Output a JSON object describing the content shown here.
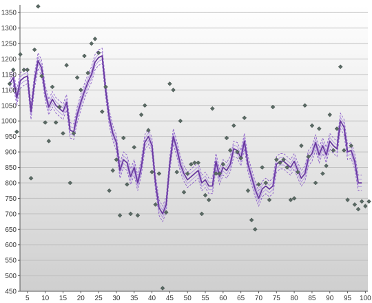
{
  "chart_data": {
    "type": "line",
    "title": "",
    "xlabel": "",
    "ylabel": "",
    "xlim": [
      0,
      100
    ],
    "ylim": [
      450,
      1375
    ],
    "grid": true,
    "legend": "none",
    "x_ticks": [
      5,
      10,
      15,
      20,
      25,
      30,
      35,
      40,
      45,
      50,
      55,
      60,
      65,
      70,
      75,
      80,
      85,
      90,
      95,
      100
    ],
    "y_ticks": [
      450,
      500,
      550,
      600,
      650,
      700,
      750,
      800,
      850,
      900,
      950,
      1000,
      1050,
      1100,
      1150,
      1200,
      1250,
      1300,
      1350
    ],
    "x_tick_labels": [
      "5",
      "10",
      "15",
      "20",
      "25",
      "30",
      "35",
      "40",
      "45",
      "50",
      "55",
      "60",
      "65",
      "70",
      "75",
      "80",
      "85",
      "90",
      "95",
      "100"
    ],
    "y_tick_labels": [
      "450",
      "500",
      "550",
      "600",
      "650",
      "700",
      "750",
      "800",
      "850",
      "900",
      "950",
      "1000",
      "1050",
      "1100",
      "1150",
      "1200",
      "1250",
      "1300",
      "1350"
    ],
    "colors": {
      "fit_line": "#6a3aa0",
      "band_lines": "#8a5cc8",
      "points": "#5a6a64",
      "grid": "#c0c0c0",
      "background_top": "#ffffff",
      "background_bottom": "#cfcfcf"
    },
    "fit": {
      "x": [
        0,
        1,
        2,
        3,
        4,
        5,
        6,
        7,
        8,
        9,
        10,
        11,
        12,
        13,
        14,
        15,
        16,
        17,
        18,
        19,
        20,
        21,
        22,
        23,
        24,
        25,
        26,
        27,
        28,
        29,
        30,
        31,
        32,
        33,
        34,
        35,
        36,
        37,
        38,
        39,
        40,
        41,
        42,
        43,
        44,
        45,
        46,
        47,
        48,
        49,
        50,
        51,
        52,
        53,
        54,
        55,
        56,
        57,
        58,
        59,
        60,
        61,
        62,
        63,
        64,
        65,
        66,
        67,
        68,
        69,
        70,
        71,
        72,
        73,
        74,
        75,
        76,
        77,
        78,
        79,
        80,
        81,
        82,
        83,
        84,
        85,
        86,
        87,
        88,
        89,
        90,
        91,
        92,
        93,
        94,
        95,
        96,
        97,
        98,
        99
      ],
      "y": [
        1120,
        1140,
        1075,
        1130,
        1140,
        1145,
        1030,
        1130,
        1195,
        1170,
        1090,
        1045,
        1070,
        1050,
        1040,
        1030,
        1060,
        970,
        965,
        1020,
        1060,
        1095,
        1125,
        1150,
        1190,
        1205,
        1210,
        1100,
        1010,
        960,
        930,
        840,
        875,
        865,
        820,
        850,
        800,
        850,
        930,
        950,
        920,
        800,
        720,
        700,
        730,
        860,
        950,
        910,
        860,
        830,
        810,
        820,
        830,
        840,
        800,
        810,
        790,
        790,
        870,
        820,
        850,
        840,
        860,
        910,
        905,
        880,
        935,
        860,
        820,
        780,
        750,
        780,
        790,
        780,
        790,
        860,
        870,
        870,
        860,
        850,
        870,
        840,
        815,
        830,
        880,
        895,
        930,
        890,
        920,
        890,
        935,
        920,
        910,
        1000,
        980,
        900,
        905,
        870,
        800,
        800
      ]
    },
    "scatter": {
      "x": [
        0,
        1,
        2,
        3,
        4,
        5,
        6,
        7,
        8,
        9,
        10,
        11,
        12,
        13,
        14,
        15,
        16,
        17,
        18,
        19,
        20,
        21,
        22,
        23,
        24,
        25,
        26,
        27,
        28,
        29,
        30,
        31,
        32,
        33,
        34,
        35,
        36,
        37,
        38,
        39,
        40,
        41,
        42,
        43,
        44,
        45,
        46,
        47,
        48,
        49,
        50,
        51,
        52,
        53,
        54,
        55,
        56,
        57,
        58,
        59,
        60,
        61,
        62,
        63,
        64,
        65,
        66,
        67,
        68,
        69,
        70,
        71,
        72,
        73,
        74,
        75,
        76,
        77,
        78,
        79,
        80,
        81,
        82,
        83,
        84,
        85,
        86,
        87,
        88,
        89,
        90,
        91,
        92,
        93,
        94,
        95,
        96,
        97,
        98,
        99,
        100,
        101
      ],
      "y": [
        1120,
        1165,
        965,
        1215,
        1165,
        1165,
        815,
        1230,
        1370,
        1145,
        995,
        935,
        1110,
        995,
        1045,
        960,
        1180,
        800,
        960,
        1140,
        1100,
        1210,
        1155,
        1250,
        1265,
        1220,
        1030,
        1110,
        775,
        840,
        875,
        695,
        945,
        795,
        700,
        915,
        695,
        1020,
        1050,
        970,
        835,
        730,
        830,
        460,
        705,
        1120,
        1100,
        835,
        1000,
        770,
        830,
        860,
        865,
        865,
        700,
        760,
        745,
        1040,
        830,
        830,
        860,
        945,
        905,
        985,
        900,
        880,
        1010,
        775,
        680,
        650,
        795,
        850,
        800,
        745,
        1045,
        875,
        865,
        875,
        850,
        745,
        750,
        835,
        920,
        1050,
        885,
        985,
        800,
        975,
        830,
        855,
        1020,
        905,
        975,
        1175,
        905,
        745,
        920,
        730,
        715,
        740,
        725,
        740
      ]
    }
  }
}
